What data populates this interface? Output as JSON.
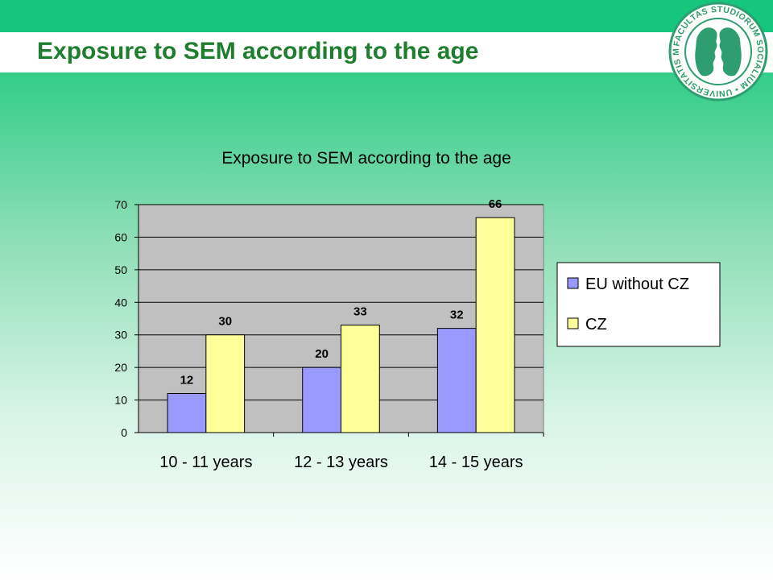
{
  "slide": {
    "title": "Exposure to SEM according to the age",
    "seal_text": "FACULTAS STUDIORUM SOCIALIUM • UNIVERSITATIS MASARYKIANAE •"
  },
  "colors": {
    "brand_green": "#17c67d",
    "title_text": "#1f7d2f",
    "series_eu": "#9999ff",
    "series_cz": "#ffff99",
    "plot_bg": "#c0c0c0"
  },
  "chart_data": {
    "type": "bar",
    "title": "Exposure to SEM according to the age",
    "categories": [
      "10 - 11 years",
      "12 - 13 years",
      "14 - 15 years"
    ],
    "series": [
      {
        "name": "EU without CZ",
        "values": [
          12,
          20,
          32
        ]
      },
      {
        "name": "CZ",
        "values": [
          30,
          33,
          66
        ]
      }
    ],
    "ylim": [
      0,
      70
    ],
    "yticks": [
      0,
      10,
      20,
      30,
      40,
      50,
      60,
      70
    ],
    "grid": true,
    "legend": "right",
    "xlabel": "",
    "ylabel": ""
  }
}
